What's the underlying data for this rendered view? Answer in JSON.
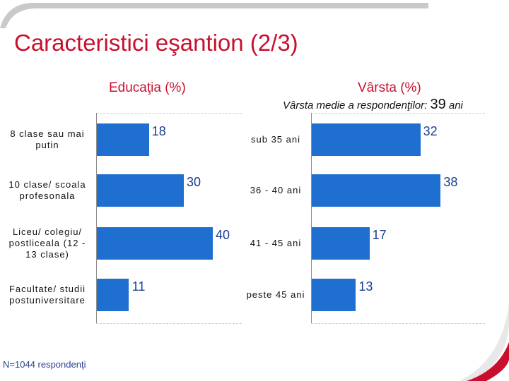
{
  "slide": {
    "title": "Caracteristici eşantion (2/3)",
    "footnote": "N=1044 respondenţi"
  },
  "colors": {
    "accent_red": "#c8102e",
    "bar_blue": "#1f6fd0",
    "value_blue": "#1a3e91"
  },
  "chart_data": [
    {
      "type": "bar",
      "orientation": "horizontal",
      "title": "Educaţia (%)",
      "categories": [
        "8 clase sau mai putin",
        "10 clase/ scoala profesonala",
        "Liceu/ colegiu/ postliceala (12 - 13 clase)",
        "Facultate/ studii postuniversitare"
      ],
      "values": [
        18,
        30,
        40,
        11
      ],
      "value_labels": [
        "18",
        "30",
        "40",
        "11"
      ],
      "xlim": [
        0,
        50
      ],
      "grid": true
    },
    {
      "type": "bar",
      "orientation": "horizontal",
      "title": "Vârsta (%)",
      "subtitle_text": "Vârsta medie a respondenţilor:",
      "subtitle_value": "39",
      "subtitle_unit": "ani",
      "categories": [
        "sub 35 ani",
        "36 - 40 ani",
        "41 - 45 ani",
        "peste 45 ani"
      ],
      "values": [
        32,
        38,
        17,
        13
      ],
      "value_labels": [
        "32",
        "38",
        "17",
        "13"
      ],
      "xlim": [
        0,
        45
      ],
      "grid": true
    }
  ]
}
